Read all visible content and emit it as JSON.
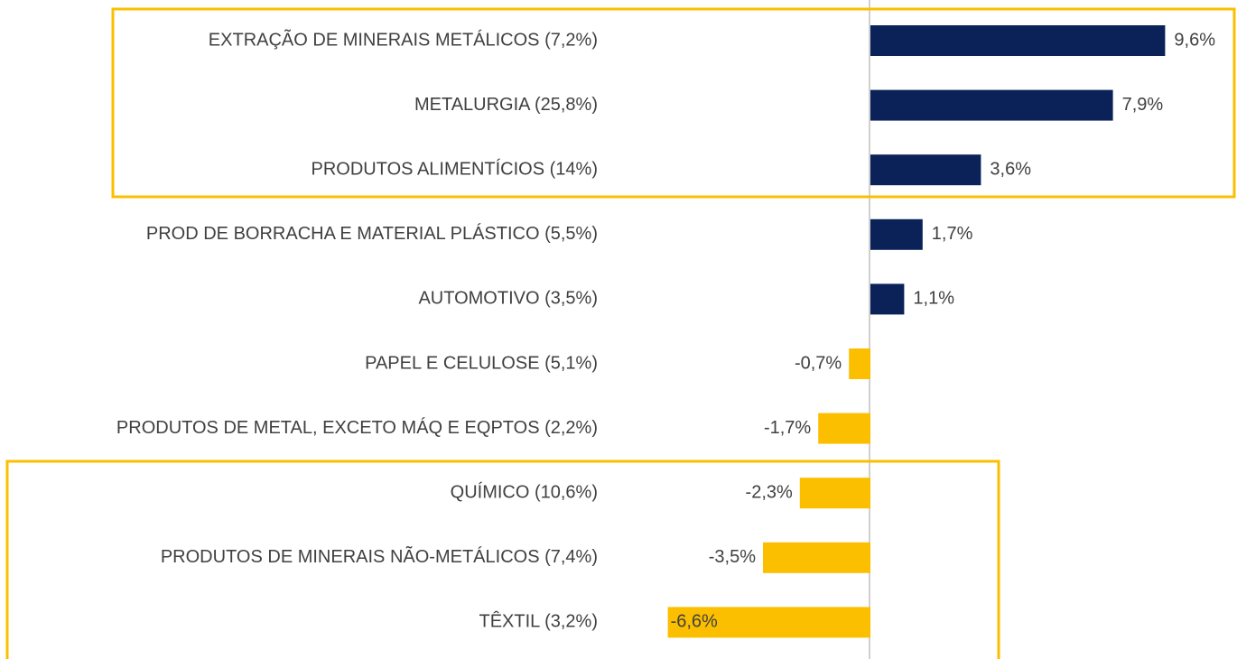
{
  "chart_data": {
    "type": "hbar",
    "categories": [
      "EXTRAÇÃO DE MINERAIS METÁLICOS (7,2%)",
      "METALURGIA (25,8%)",
      "PRODUTOS ALIMENTÍCIOS (14%)",
      "PROD DE BORRACHA E MATERIAL PLÁSTICO (5,5%)",
      "AUTOMOTIVO (3,5%)",
      "PAPEL E CELULOSE (5,1%)",
      "PRODUTOS DE METAL, EXCETO MÁQ E EQPTOS (2,2%)",
      "QUÍMICO (10,6%)",
      "PRODUTOS DE MINERAIS NÃO-METÁLICOS (7,4%)",
      "TÊXTIL (3,2%)"
    ],
    "values": [
      9.6,
      7.9,
      3.6,
      1.7,
      1.1,
      -0.7,
      -1.7,
      -2.3,
      -3.5,
      -6.6
    ],
    "value_labels": [
      "9,6%",
      "7,9%",
      "3,6%",
      "1,7%",
      "1,1%",
      "-0,7%",
      "-1,7%",
      "-2,3%",
      "-3,5%",
      "-6,6%"
    ],
    "color_positive": "#0b2259",
    "color_negative": "#fbbf00"
  }
}
